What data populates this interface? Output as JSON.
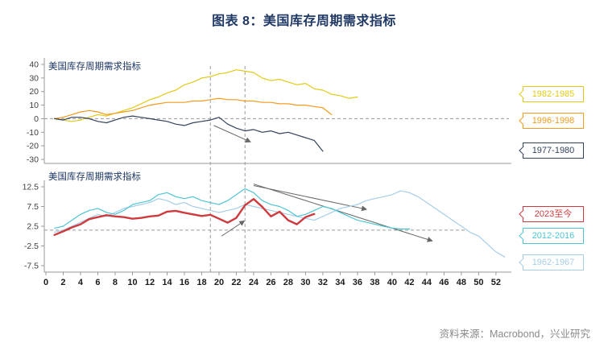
{
  "title": "图表 8：美国库存周期需求指标",
  "source": "资料来源：Macrobond，兴业研究",
  "colors": {
    "title_navy": "#1F3864",
    "axis_gray": "#999999",
    "dash_gray": "#9A9A9A",
    "arrow_gray": "#666666"
  },
  "x_axis": {
    "ticks": [
      0,
      2,
      4,
      6,
      8,
      10,
      12,
      14,
      16,
      18,
      20,
      22,
      24,
      26,
      28,
      30,
      32,
      34,
      36,
      38,
      40,
      42,
      44,
      46,
      48,
      50,
      52
    ],
    "vlines": [
      19,
      23
    ]
  },
  "legend": [
    {
      "label": "1982-1985",
      "color": "#E2C917"
    },
    {
      "label": "1996-1998",
      "color": "#F29B1D"
    },
    {
      "label": "1977-1980",
      "color": "#33425B"
    },
    {
      "label": "2023至今",
      "color": "#CE3A3E"
    },
    {
      "label": "2012-2016",
      "color": "#4EC5D3"
    },
    {
      "label": "1962-1967",
      "color": "#A6CDE8"
    }
  ],
  "chart_data": [
    {
      "type": "line",
      "panel": "top",
      "title": "美国库存周期需求指标",
      "ylim": [
        -30,
        40
      ],
      "yticks": [
        40,
        30,
        20,
        10,
        0,
        -10,
        -20,
        -30
      ],
      "xlim": [
        0,
        53.5
      ],
      "annotations": {
        "hlines": [
          {
            "y": 0
          }
        ],
        "arrows": [
          [
            19.4,
            -5,
            23.6,
            -17
          ]
        ]
      },
      "series": [
        {
          "name": "1982-1985",
          "color": "#E2C917",
          "x_start": 1,
          "y": [
            0,
            -1,
            -2,
            -1,
            1,
            3,
            2,
            4,
            6,
            8,
            11,
            14,
            16,
            19,
            21,
            25,
            27,
            30,
            31,
            33,
            34,
            36,
            35,
            34,
            30,
            28,
            29,
            27,
            25,
            26,
            22,
            21,
            18,
            17,
            15,
            16
          ]
        },
        {
          "name": "1996-1998",
          "color": "#F29B1D",
          "x_start": 1,
          "y": [
            0,
            1,
            3,
            5,
            6,
            5,
            3,
            4,
            5,
            6,
            8,
            10,
            11,
            12,
            12,
            12,
            13,
            13,
            14,
            15,
            14,
            14,
            13,
            13,
            12,
            12,
            11,
            11,
            10,
            10,
            9,
            8,
            3
          ]
        },
        {
          "name": "1977-1980",
          "color": "#33425B",
          "x_start": 1,
          "y": [
            0,
            -1,
            1,
            1,
            0,
            -2,
            -3,
            -1,
            1,
            2,
            1,
            0,
            -1,
            -2,
            -4,
            -5,
            -3,
            -2,
            -1,
            1,
            -4,
            -7,
            -9,
            -8,
            -10,
            -9,
            -11,
            -10,
            -12,
            -14,
            -16,
            -24
          ]
        }
      ]
    },
    {
      "type": "line",
      "panel": "bottom",
      "title": "美国库存周期需求指标",
      "ylim": [
        -7.5,
        12.5
      ],
      "yticks": [
        12.5,
        7.5,
        2.5,
        -2.5,
        -7.5
      ],
      "xlim": [
        0,
        53.5
      ],
      "annotations": {
        "hlines": [
          {
            "y": 1.5,
            "x2": 48.5
          }
        ],
        "arrows": [
          [
            24,
            13.2,
            44.6,
            -1.2
          ],
          [
            24,
            12.8,
            37,
            6.8
          ],
          [
            20.3,
            0,
            22.9,
            3.8
          ]
        ]
      },
      "series": [
        {
          "name": "1962-1967",
          "color": "#A6CDE8",
          "x_start": 1,
          "y": [
            1.0,
            1.5,
            2.5,
            3.5,
            4.5,
            5.5,
            5.0,
            6.0,
            7.0,
            7.5,
            8.0,
            8.5,
            9.5,
            9.0,
            8.0,
            8.5,
            7.5,
            7.0,
            6.5,
            6.0,
            6.5,
            7.0,
            8.0,
            7.5,
            7.0,
            6.5,
            6.0,
            5.5,
            5.0,
            4.5,
            4.0,
            5.0,
            6.0,
            7.0,
            7.5,
            8.0,
            9.0,
            9.5,
            10.0,
            10.5,
            11.5,
            11.0,
            10.0,
            8.5,
            7.0,
            5.5,
            4.0,
            2.5,
            1.0,
            0.0,
            -2.0,
            -4.0,
            -5.3
          ]
        },
        {
          "name": "2012-2016",
          "color": "#4EC5D3",
          "x_start": 1,
          "y": [
            2.0,
            2.5,
            4.0,
            5.5,
            6.5,
            7.0,
            6.0,
            5.5,
            6.5,
            8.0,
            8.5,
            9.0,
            10.5,
            11.0,
            10.0,
            9.5,
            10.0,
            9.0,
            8.5,
            8.0,
            9.0,
            10.5,
            12.0,
            11.0,
            9.0,
            8.0,
            7.5,
            6.5,
            5.0,
            5.5,
            6.5,
            7.5,
            7.0,
            6.0,
            5.0,
            4.0,
            3.5,
            3.0,
            2.5,
            2.0,
            1.8,
            1.8
          ]
        },
        {
          "name": "2023至今",
          "color": "#CE3A3E",
          "bold": true,
          "x_start": 1,
          "y": [
            0.3,
            1.2,
            2.2,
            3.0,
            4.3,
            4.8,
            5.3,
            5.0,
            4.8,
            4.4,
            4.6,
            5.0,
            5.2,
            6.2,
            6.4,
            5.9,
            5.5,
            5.1,
            5.4,
            4.4,
            3.4,
            4.6,
            7.8,
            9.4,
            7.4,
            5.0,
            6.2,
            4.0,
            3.0,
            4.8,
            5.6
          ]
        }
      ]
    }
  ]
}
